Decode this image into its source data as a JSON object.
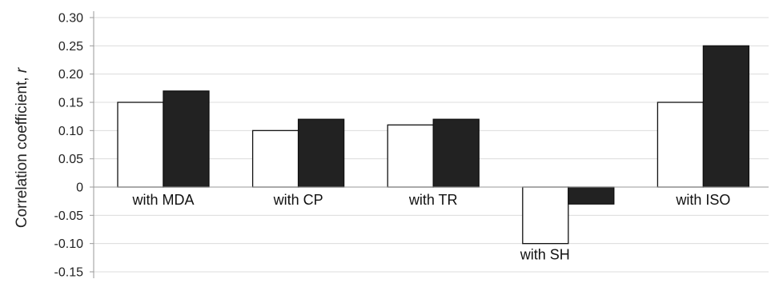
{
  "chart_data": {
    "type": "bar",
    "categories": [
      "with MDA",
      "with CP",
      "with TR",
      "with SH",
      "with ISO"
    ],
    "series": [
      {
        "values": [
          0.15,
          0.1,
          0.11,
          -0.1,
          0.15
        ],
        "color": "#ffffff"
      },
      {
        "values": [
          0.17,
          0.12,
          0.12,
          -0.03,
          0.25
        ],
        "color": "#222222"
      }
    ],
    "y_ticks": [
      "0.30",
      "0.25",
      "0.20",
      "0.15",
      "0.10",
      "0.05",
      "0",
      "-0.05",
      "-0.10",
      "-0.15"
    ],
    "ylabel": "Correlation coefficient, ",
    "ylabel_italic": "r",
    "ylim": [
      -0.15,
      0.3
    ],
    "grid": true,
    "legend": "none"
  }
}
